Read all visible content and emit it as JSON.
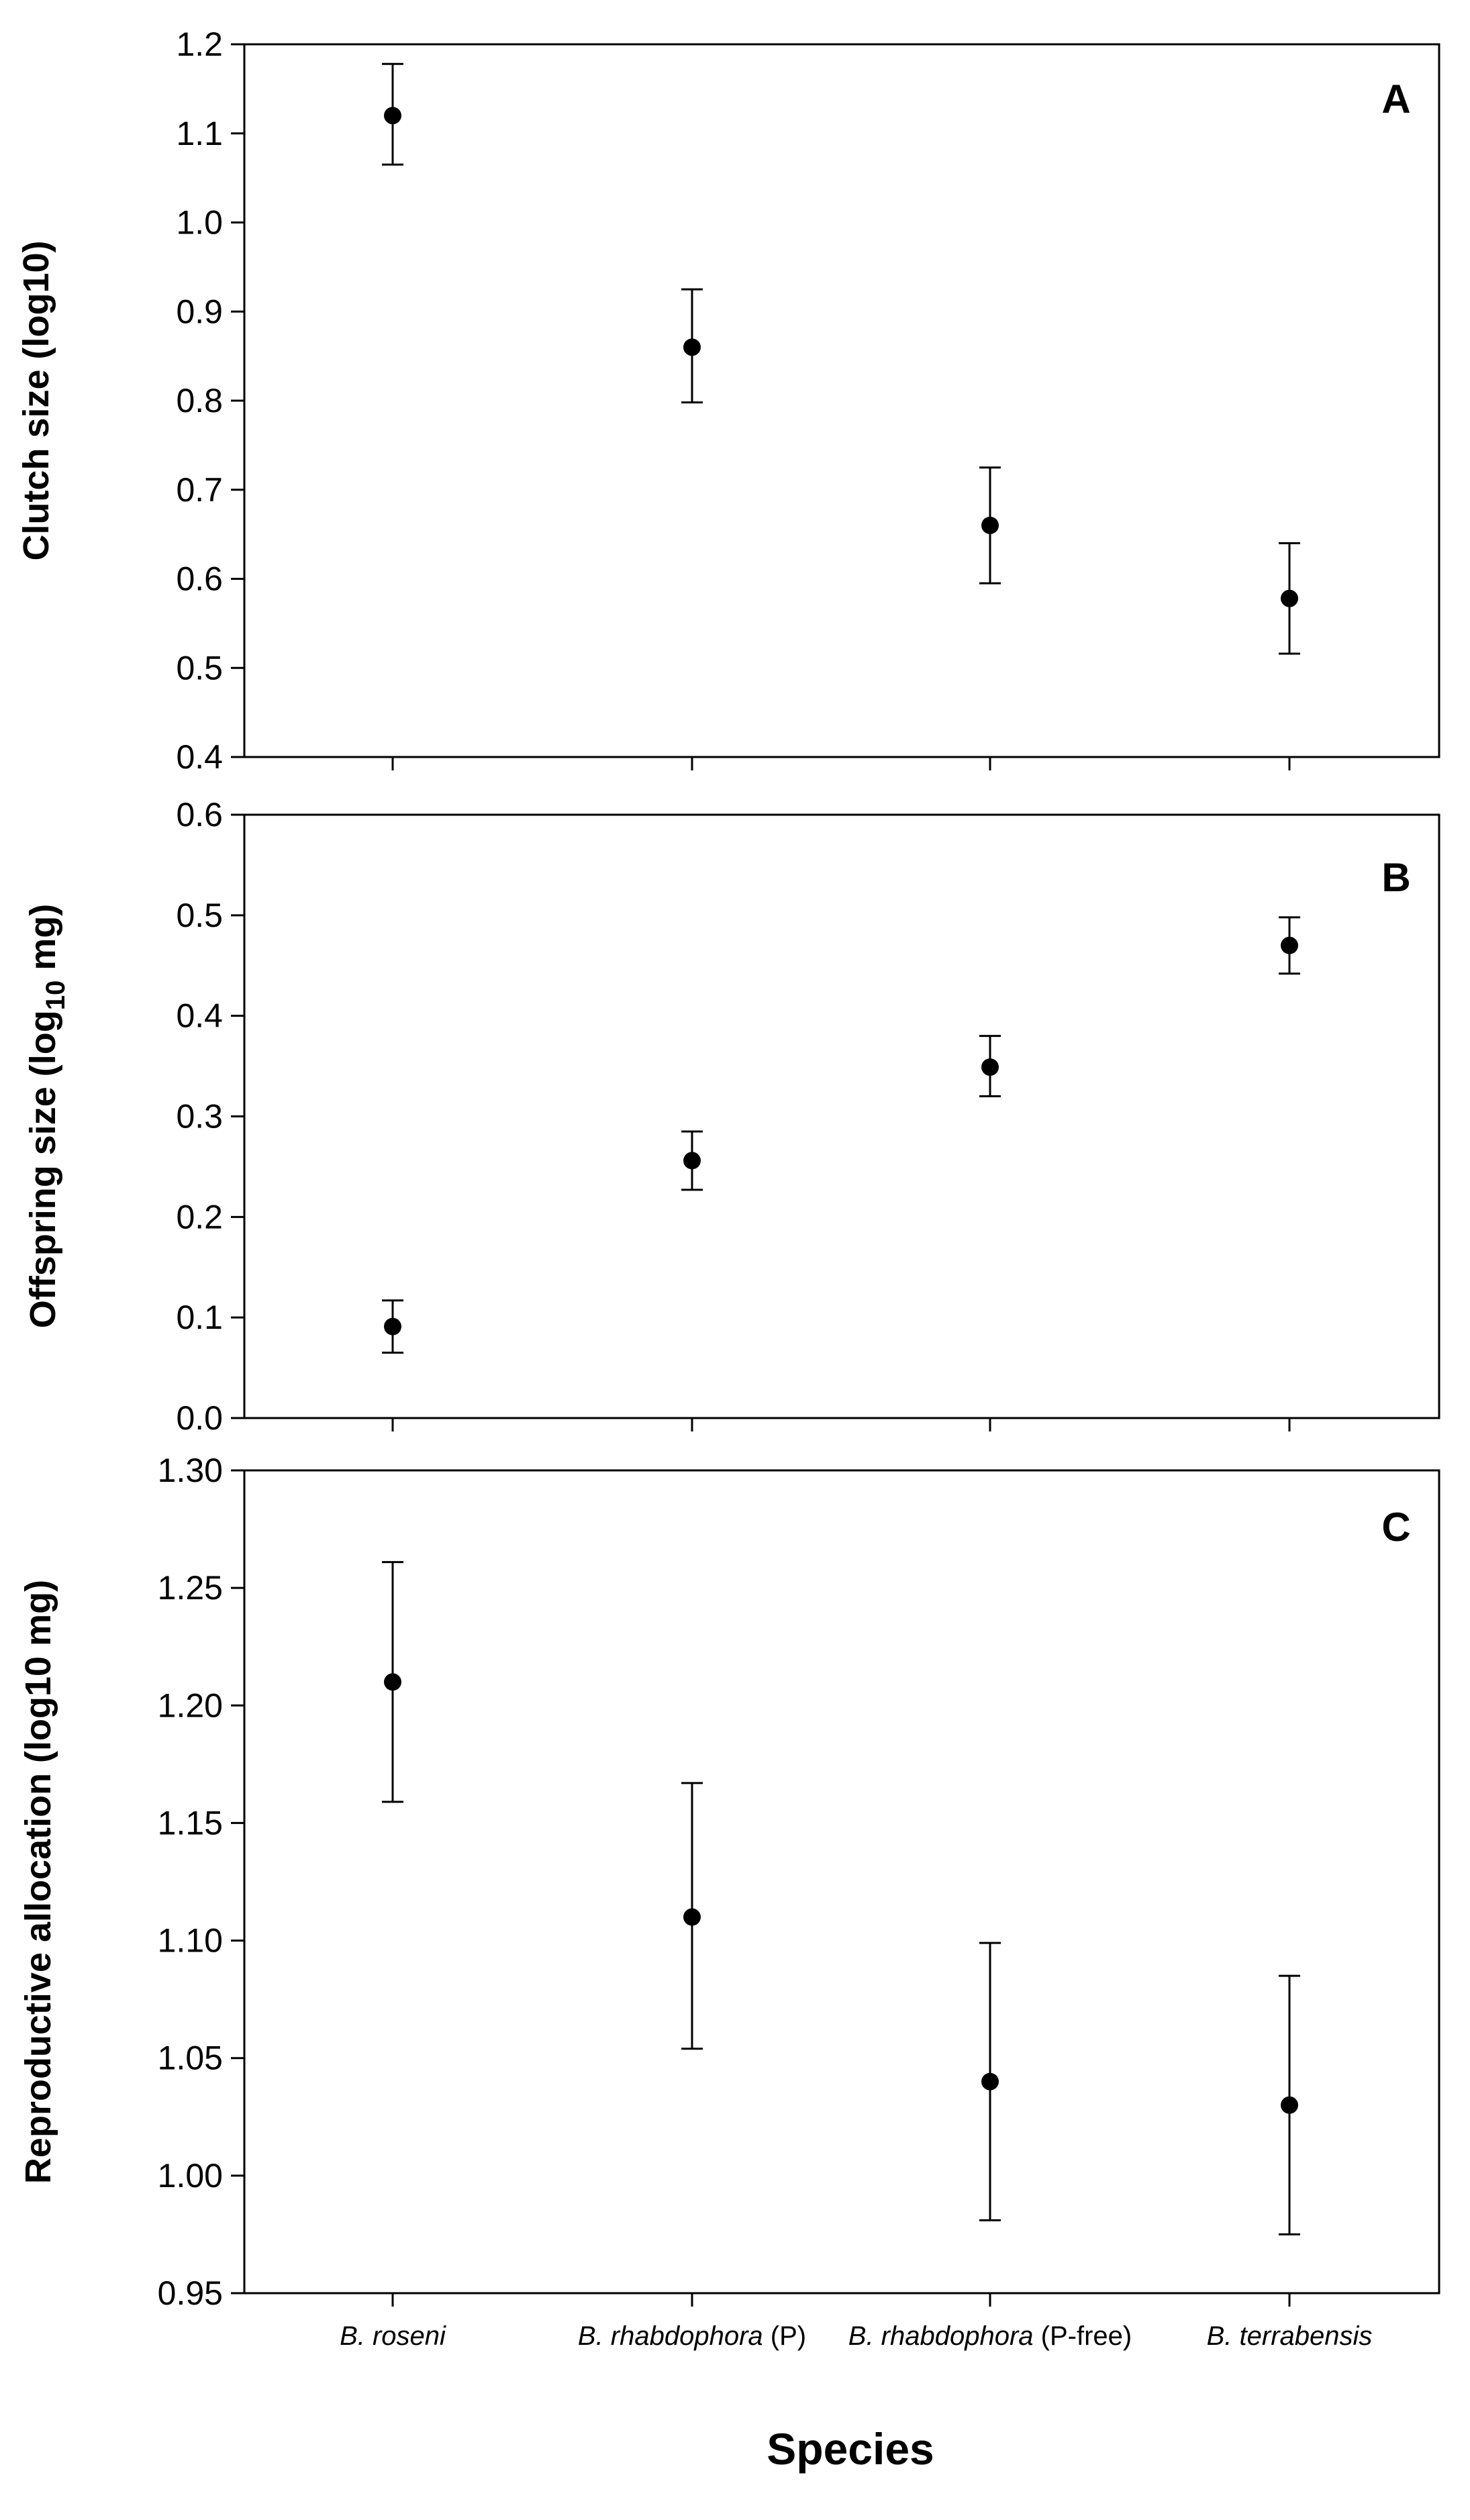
{
  "chart_data": [
    {
      "type": "scatter",
      "panel_label": "A",
      "ylabel": "Clutch size (log10)",
      "ylim": [
        0.4,
        1.2
      ],
      "yticks": [
        "0.4",
        "0.5",
        "0.6",
        "0.7",
        "0.8",
        "0.9",
        "1.0",
        "1.1",
        "1.2"
      ],
      "categories": [
        "B. roseni",
        "B. rhabdophora (P)",
        "B. rhabdophora (P-free)",
        "B. terrabensis"
      ],
      "values": [
        1.12,
        0.86,
        0.66,
        0.578
      ],
      "error_low": [
        1.065,
        0.798,
        0.595,
        0.516
      ],
      "error_high": [
        1.178,
        0.925,
        0.725,
        0.64
      ],
      "grid": false
    },
    {
      "type": "scatter",
      "panel_label": "B",
      "ylabel": "Offspring size (log",
      "ylabel_sub": "10",
      "ylabel_end": " mg)",
      "ylim": [
        0.0,
        0.6
      ],
      "yticks": [
        "0.0",
        "0.1",
        "0.2",
        "0.3",
        "0.4",
        "0.5",
        "0.6"
      ],
      "categories": [
        "B. roseni",
        "B. rhabdophora (P)",
        "B. rhabdophora (P-free)",
        "B. terrabensis"
      ],
      "values": [
        0.091,
        0.256,
        0.349,
        0.47
      ],
      "error_low": [
        0.065,
        0.227,
        0.32,
        0.442
      ],
      "error_high": [
        0.117,
        0.285,
        0.38,
        0.498
      ],
      "grid": false
    },
    {
      "type": "scatter",
      "panel_label": "C",
      "ylabel": "Reproductive allocation (log10 mg)",
      "ylim": [
        0.95,
        1.3
      ],
      "yticks": [
        "0.95",
        "1.00",
        "1.05",
        "1.10",
        "1.15",
        "1.20",
        "1.25",
        "1.30"
      ],
      "categories": [
        "B. roseni",
        "B. rhabdophora (P)",
        "B. rhabdophora (P-free)",
        "B. terrabensis"
      ],
      "values": [
        1.21,
        1.11,
        1.04,
        1.03
      ],
      "error_low": [
        1.159,
        1.054,
        0.981,
        0.975
      ],
      "error_high": [
        1.261,
        1.167,
        1.099,
        1.085
      ],
      "grid": false
    }
  ],
  "x_axis": {
    "xlabel": "Species",
    "categories": [
      {
        "italic": "B. roseni",
        "plain": ""
      },
      {
        "italic": "B. rhabdophora",
        "plain": " (P)"
      },
      {
        "italic": "B. rhabdophora",
        "plain": " (P-free)"
      },
      {
        "italic": "B. terrabensis",
        "plain": ""
      }
    ]
  }
}
